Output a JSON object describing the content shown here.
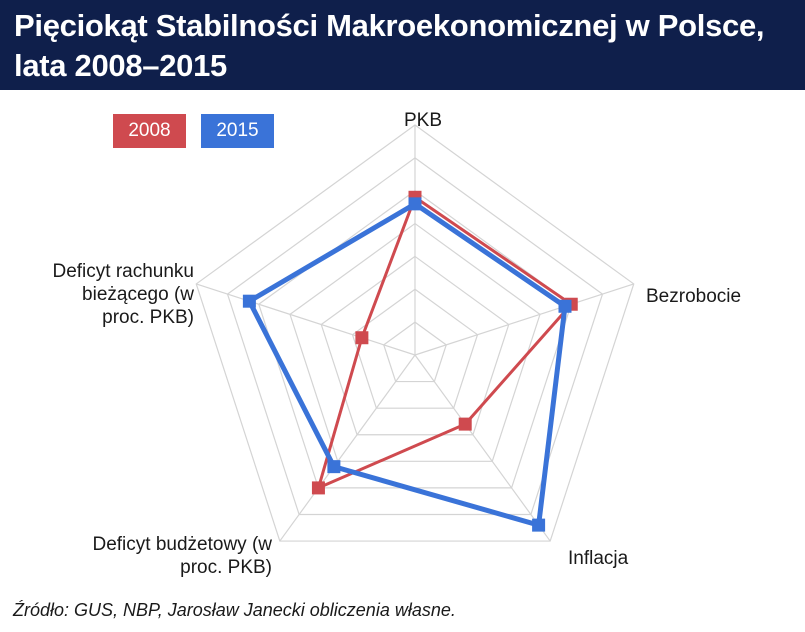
{
  "title": "Pięciokąt Stabilności Makroekonomicznej w Polsce, lata 2008–2015",
  "source": "Źródło: GUS, NBP, Jarosław Janecki obliczenia własne.",
  "colors": {
    "header_bg": "#0f1f4b",
    "series_2008": "#cf4a4f",
    "series_2015": "#3a73d8",
    "grid": "#d4d4d4"
  },
  "chart_data": {
    "type": "radar",
    "title": "Pięciokąt Stabilności Makroekonomicznej w Polsce, lata 2008–2015",
    "axes": [
      {
        "key": "pkb",
        "label": "PKB"
      },
      {
        "key": "bezrobocie",
        "label": "Bezrobocie"
      },
      {
        "key": "inflacja",
        "label": "Inflacja"
      },
      {
        "key": "deficyt_budzetowy",
        "label": "Deficyt budżetowy (w proc. PKB)"
      },
      {
        "key": "deficyt_rachunku",
        "label": "Deficyt rachunku bieżącego (w proc. PKB)"
      }
    ],
    "rings": 7,
    "range": [
      0,
      7
    ],
    "grid": true,
    "legend_position": "top-left",
    "series": [
      {
        "name": "2008",
        "color": "#cf4a4f",
        "values": [
          4.8,
          5.0,
          2.6,
          5.0,
          1.7
        ]
      },
      {
        "name": "2015",
        "color": "#3a73d8",
        "values": [
          4.6,
          4.8,
          6.4,
          4.2,
          5.3
        ]
      }
    ]
  }
}
